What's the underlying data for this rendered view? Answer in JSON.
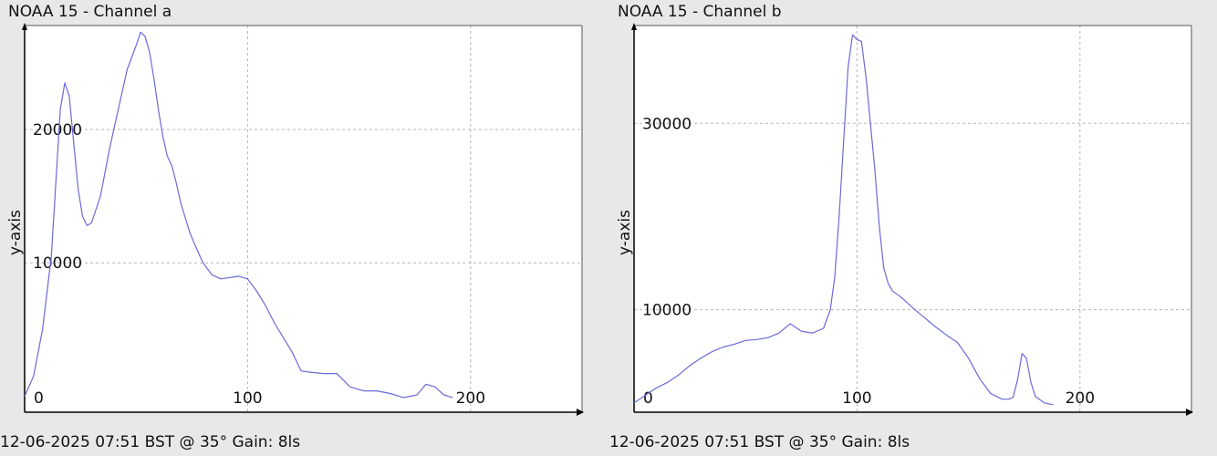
{
  "chart_data": [
    {
      "type": "line",
      "title": "NOAA 15 - Channel a",
      "ylabel": "y-axis",
      "footer": "12-06-2025 07:51 BST @ 35° Gain: 8ls",
      "xlim": [
        0,
        250
      ],
      "ylim": [
        -1200,
        27800
      ],
      "x_ticks": [
        0,
        100,
        200
      ],
      "y_ticks": [
        10000,
        20000
      ],
      "grid": true,
      "line_color": "#6a6ad8",
      "series": [
        {
          "x": [
            0,
            4,
            8,
            12,
            14,
            16,
            18,
            20,
            22,
            24,
            26,
            28,
            30,
            34,
            38,
            42,
            46,
            50,
            52,
            54,
            56,
            58,
            60,
            62,
            64,
            66,
            68,
            70,
            72,
            74,
            76,
            80,
            84,
            88,
            92,
            96,
            100,
            104,
            108,
            112,
            116,
            120,
            124,
            128,
            134,
            140,
            146,
            152,
            158,
            164,
            170,
            176,
            180,
            184,
            188,
            192
          ],
          "y": [
            0,
            1500,
            5000,
            10500,
            16000,
            21500,
            23500,
            22500,
            19000,
            15500,
            13500,
            12800,
            13000,
            15000,
            18500,
            21500,
            24500,
            26300,
            27300,
            27000,
            25800,
            23800,
            21500,
            19500,
            18000,
            17300,
            16000,
            14500,
            13400,
            12300,
            11500,
            10000,
            9100,
            8800,
            8900,
            9000,
            8800,
            7900,
            6800,
            5500,
            4400,
            3300,
            1900,
            1800,
            1700,
            1700,
            700,
            400,
            400,
            200,
            -100,
            100,
            900,
            700,
            100,
            -100
          ]
        }
      ]
    },
    {
      "type": "line",
      "title": "NOAA 15 - Channel b",
      "ylabel": "y-axis",
      "footer": "12-06-2025 07:51 BST @ 35° Gain: 8ls",
      "xlim": [
        0,
        250
      ],
      "ylim": [
        -1000,
        40500
      ],
      "x_ticks": [
        0,
        100,
        200
      ],
      "y_ticks": [
        10000,
        30000
      ],
      "grid": true,
      "line_color": "#6a6ad8",
      "series": [
        {
          "x": [
            0,
            5,
            10,
            15,
            20,
            25,
            30,
            35,
            40,
            45,
            50,
            55,
            60,
            65,
            70,
            75,
            80,
            85,
            88,
            90,
            92,
            94,
            96,
            98,
            100,
            102,
            104,
            106,
            108,
            110,
            112,
            114,
            116,
            120,
            125,
            130,
            135,
            140,
            145,
            150,
            155,
            160,
            165,
            168,
            170,
            172,
            174,
            176,
            178,
            180,
            184,
            188
          ],
          "y": [
            0,
            800,
            1600,
            2200,
            3000,
            4000,
            4800,
            5500,
            6000,
            6300,
            6700,
            6800,
            7000,
            7500,
            8500,
            7700,
            7500,
            8000,
            10000,
            13500,
            20000,
            28000,
            36000,
            39500,
            39000,
            38800,
            35000,
            30000,
            25000,
            19000,
            14500,
            12800,
            12000,
            11300,
            10200,
            9200,
            8200,
            7300,
            6500,
            4800,
            2600,
            1000,
            400,
            400,
            600,
            2500,
            5300,
            4800,
            2200,
            700,
            0,
            -200
          ]
        }
      ]
    }
  ]
}
